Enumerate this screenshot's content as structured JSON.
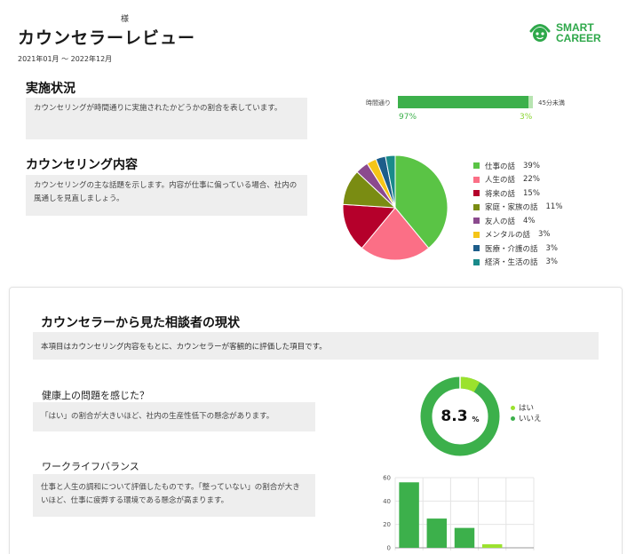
{
  "header": {
    "honorific": "様",
    "title": "カウンセラーレビュー",
    "period": "2021年01月 ～ 2022年12月"
  },
  "logo": {
    "line1": "SMART",
    "line2": "CAREER",
    "color": "#2ea84a"
  },
  "implementation": {
    "title": "実施状況",
    "description": "カウンセリングが時間通りに実施されたかどうかの割合を表しています。",
    "left_label": "時間通り",
    "right_label": "45分未満",
    "on_time_percent": 97,
    "left_value": "97%",
    "right_value": "3%"
  },
  "content": {
    "title": "カウンセリング内容",
    "description": "カウンセリングの主な話題を示します。内容が仕事に偏っている場合、社内の風通しを見直しましょう。",
    "topics": [
      {
        "label": "仕事の話",
        "percent": "39%",
        "value": 39,
        "color": "#5ac445"
      },
      {
        "label": "人生の話",
        "percent": "22%",
        "value": 22,
        "color": "#fb6f86"
      },
      {
        "label": "将来の話",
        "percent": "15%",
        "value": 15,
        "color": "#b5002b"
      },
      {
        "label": "家庭・家族の話",
        "percent": "11%",
        "value": 11,
        "color": "#7a8c12"
      },
      {
        "label": "友人の話",
        "percent": "4%",
        "value": 4,
        "color": "#8b4a8e"
      },
      {
        "label": "メンタルの話",
        "percent": "3%",
        "value": 3,
        "color": "#f5c518"
      },
      {
        "label": "医療・介護の話",
        "percent": "3%",
        "value": 3,
        "color": "#1d5d8a"
      },
      {
        "label": "経済・生活の話",
        "percent": "3%",
        "value": 3,
        "color": "#1a8a8a"
      }
    ]
  },
  "status": {
    "title": "カウンセラーから見た相談者の現状",
    "note": "本項目はカウンセリング内容をもとに、カウンセラーが客観的に評価した項目です。",
    "health": {
      "question": "健康上の問題を感じた？",
      "description": "「はい」の割合が大きいほど、社内の生産性低下の懸念があります。",
      "value": "8.3",
      "unit": "%",
      "yes_percent": 8.3,
      "legend_yes": "はい",
      "legend_no": "いいえ",
      "color_yes": "#9be22d",
      "color_no": "#3cb04b"
    },
    "work_life": {
      "question": "ワークライフバランス",
      "description": "仕事と人生の調和について評価したものです。「整っていない」の割合が大きいほど、仕事に疲弊する環境である懸念が高まります。"
    }
  },
  "chart_data": {
    "type": "bar",
    "ylim": [
      0,
      60
    ],
    "yticks": [
      "0",
      "20",
      "40",
      "60"
    ],
    "values": [
      56,
      25,
      17,
      3,
      0
    ],
    "colors": [
      "#3cb04b",
      "#3cb04b",
      "#3cb04b",
      "#9be22d",
      "#3cb04b"
    ]
  }
}
